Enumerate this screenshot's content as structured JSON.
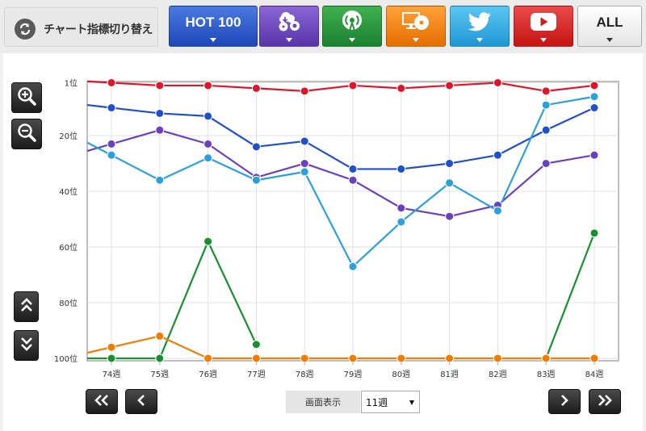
{
  "toolbar": {
    "switch_label": "チャート指標切り替え",
    "buttons": [
      {
        "name": "hot100",
        "label": "HOT 100",
        "icon": "caret-down-icon"
      },
      {
        "name": "download",
        "label": "",
        "icon": "download-cloud-icon"
      },
      {
        "name": "radio",
        "label": "",
        "icon": "radio-antenna-icon"
      },
      {
        "name": "tv",
        "label": "",
        "icon": "monitor-disc-icon"
      },
      {
        "name": "twitter",
        "label": "",
        "icon": "twitter-bird-icon"
      },
      {
        "name": "youtube",
        "label": "",
        "icon": "youtube-play-icon"
      },
      {
        "name": "all",
        "label": "ALL",
        "icon": "caret-down-icon"
      }
    ]
  },
  "controls": {
    "display_label": "画面表示",
    "display_value": "11週"
  },
  "chart_data": {
    "type": "line",
    "title": "",
    "xlabel": "",
    "ylabel": "",
    "y_inverted": true,
    "ylim": [
      1,
      100
    ],
    "yticks": [
      "1位",
      "20位",
      "40位",
      "60位",
      "80位",
      "100位"
    ],
    "ytick_values": [
      1,
      20,
      40,
      60,
      80,
      100
    ],
    "categories": [
      "74週",
      "75週",
      "76週",
      "77週",
      "78週",
      "79週",
      "80週",
      "81週",
      "82週",
      "83週",
      "84週"
    ],
    "grid": true,
    "series": [
      {
        "color": "#e0142a",
        "values": [
          1,
          2,
          2,
          3,
          4,
          2,
          3,
          2,
          1,
          4,
          2
        ]
      },
      {
        "color": "#1f4fcc",
        "values": [
          10,
          12,
          13,
          24,
          22,
          32,
          32,
          30,
          27,
          18,
          10
        ]
      },
      {
        "color": "#6a3fc0",
        "values": [
          23,
          18,
          23,
          35,
          30,
          36,
          46,
          49,
          45,
          30,
          27
        ]
      },
      {
        "color": "#2ba0dc",
        "values": [
          27,
          36,
          28,
          36,
          33,
          67,
          51,
          37,
          47,
          9,
          6
        ]
      },
      {
        "color": "#17912e",
        "values": [
          100,
          100,
          58,
          95,
          null,
          null,
          null,
          null,
          null,
          100,
          55
        ]
      },
      {
        "color": "#f07d00",
        "values": [
          96,
          92,
          100,
          100,
          100,
          100,
          100,
          100,
          100,
          100,
          100
        ]
      }
    ]
  }
}
